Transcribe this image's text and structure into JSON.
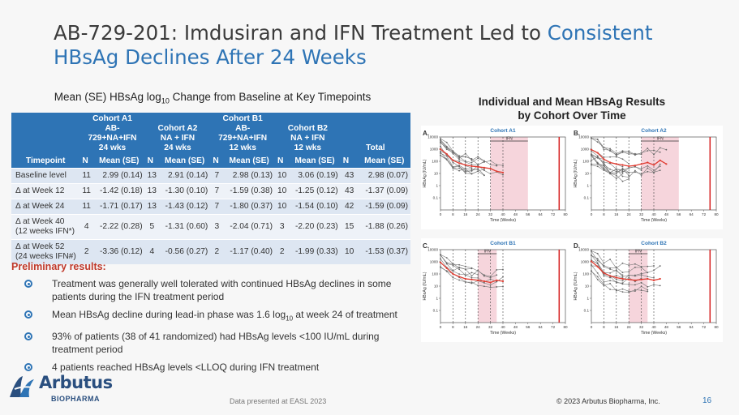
{
  "title": {
    "part1": "AB-729-201: Imdusiran and IFN Treatment Led to ",
    "accent": "Consistent",
    "line2": "HBsAg Declines After 24 Weeks"
  },
  "table_heading": {
    "prefix": "Mean (SE) HBsAg log",
    "sub": "10",
    "suffix": " Change from Baseline at Key Timepoints"
  },
  "table": {
    "timepoint_header": "Timepoint",
    "cohorts": [
      {
        "line1": "Cohort A1",
        "line2": "AB-729+NA+IFN",
        "line3": "24 wks"
      },
      {
        "line1": "Cohort A2",
        "line2": "NA + IFN",
        "line3": "24 wks"
      },
      {
        "line1": "Cohort B1",
        "line2": "AB-729+NA+IFN",
        "line3": "12 wks"
      },
      {
        "line1": "Cohort B2",
        "line2": "NA + IFN",
        "line3": "12 wks"
      },
      {
        "line1": "",
        "line2": "",
        "line3": "Total"
      }
    ],
    "n_label": "N",
    "mean_label": "Mean (SE)",
    "rows": [
      {
        "tp1": "Baseline level",
        "tp2": "",
        "cells": [
          "11",
          "2.99 (0.14)",
          "13",
          "2.91 (0.14)",
          "7",
          "2.98 (0.13)",
          "10",
          "3.06 (0.19)",
          "43",
          "2.98 (0.07)"
        ]
      },
      {
        "tp1": "Δ at Week 12",
        "tp2": "",
        "cells": [
          "11",
          "-1.42 (0.18)",
          "13",
          "-1.30 (0.10)",
          "7",
          "-1.59 (0.38)",
          "10",
          "-1.25 (0.12)",
          "43",
          "-1.37 (0.09)"
        ]
      },
      {
        "tp1": "Δ at Week 24",
        "tp2": "",
        "cells": [
          "11",
          "-1.71 (0.17)",
          "13",
          "-1.43 (0.12)",
          "7",
          "-1.80 (0.37)",
          "10",
          "-1.54 (0.10)",
          "42",
          "-1.59 (0.09)"
        ]
      },
      {
        "tp1": "Δ at Week 40",
        "tp2": "(12 weeks IFN*)",
        "cells": [
          "4",
          "-2.22 (0.28)",
          "5",
          "-1.31 (0.60)",
          "3",
          "-2.04 (0.71)",
          "3",
          "-2.20 (0.23)",
          "15",
          "-1.88 (0.26)"
        ]
      },
      {
        "tp1": "Δ at Week 52",
        "tp2": "(24 weeks IFN#)",
        "cells": [
          "2",
          "-3.36 (0.12)",
          "4",
          "-0.56 (0.27)",
          "2",
          "-1.17 (0.40)",
          "2",
          "-1.99 (0.33)",
          "10",
          "-1.53 (0.37)"
        ]
      }
    ]
  },
  "prelim": {
    "title": "Preliminary results:",
    "bullets": [
      {
        "text": "Treatment was generally well tolerated with continued HBsAg declines in some patients during the IFN treatment period"
      },
      {
        "prefix": "Mean HBsAg decline during lead-in phase was 1.6 log",
        "sub": "10",
        "suffix": " at week 24 of treatment"
      },
      {
        "text": "93% of patients (38 of 41 randomized) had HBsAg levels <100 IU/mL during treatment period"
      },
      {
        "text": "4 patients reached HBsAg levels <LLOQ during IFN treatment"
      }
    ]
  },
  "right_heading": {
    "line1": "Individual and Mean HBsAg Results",
    "line2": "by Cohort Over Time"
  },
  "panels": [
    {
      "letter": "A.",
      "cohort": "Cohort A1",
      "ifn_label": "IFN",
      "ifn_start": 32,
      "ifn_end": 56,
      "cutoff": 76
    },
    {
      "letter": "B.",
      "cohort": "Cohort A2",
      "ifn_label": "IFN",
      "ifn_start": 32,
      "ifn_end": 56,
      "cutoff": 76
    },
    {
      "letter": "C.",
      "cohort": "Cohort B1",
      "ifn_label": "IFN",
      "ifn_start": 24,
      "ifn_end": 36,
      "cutoff": 76
    },
    {
      "letter": "D.",
      "cohort": "Cohort B2",
      "ifn_label": "IFN",
      "ifn_start": 24,
      "ifn_end": 36,
      "cutoff": 76
    }
  ],
  "chart_data": [
    {
      "type": "line",
      "title": "Cohort A1",
      "xlabel": "Time (Weeks)",
      "ylabel": "HBsAg (IU/mL)",
      "xlim": [
        0,
        80
      ],
      "ylog": true,
      "ylim": [
        0.01,
        10000
      ],
      "x_ticks": [
        "0",
        "8",
        "16",
        "24",
        "32",
        "40",
        "48",
        "56",
        "64",
        "72",
        "80"
      ],
      "y_ticks": [
        "0.1",
        "1",
        "10",
        "100",
        "1000",
        "10000"
      ],
      "mean": {
        "x": [
          0,
          4,
          8,
          12,
          16,
          20,
          24,
          28,
          32,
          36,
          40
        ],
        "y": [
          1000,
          400,
          120,
          70,
          50,
          40,
          35,
          30,
          25,
          15,
          12
        ]
      }
    },
    {
      "type": "line",
      "title": "Cohort A2",
      "xlabel": "Time (Weeks)",
      "ylabel": "HBsAg (IU/mL)",
      "xlim": [
        0,
        80
      ],
      "ylog": true,
      "ylim": [
        0.01,
        10000
      ],
      "x_ticks": [
        "0",
        "8",
        "16",
        "24",
        "32",
        "40",
        "48",
        "56",
        "64",
        "72",
        "80"
      ],
      "y_ticks": [
        "0.1",
        "1",
        "10",
        "100",
        "1000",
        "10000"
      ],
      "mean": {
        "x": [
          0,
          4,
          8,
          12,
          16,
          20,
          24,
          28,
          32,
          36,
          40,
          44,
          48
        ],
        "y": [
          900,
          500,
          150,
          80,
          60,
          50,
          40,
          45,
          60,
          80,
          50,
          120,
          60
        ]
      }
    },
    {
      "type": "line",
      "title": "Cohort B1",
      "xlabel": "Time (Weeks)",
      "ylabel": "HBsAg (IU/mL)",
      "xlim": [
        0,
        80
      ],
      "ylog": true,
      "ylim": [
        0.01,
        10000
      ],
      "x_ticks": [
        "0",
        "8",
        "16",
        "24",
        "32",
        "40",
        "48",
        "56",
        "64",
        "72",
        "80"
      ],
      "y_ticks": [
        "0.1",
        "1",
        "10",
        "100",
        "1000",
        "10000"
      ],
      "mean": {
        "x": [
          0,
          4,
          8,
          12,
          16,
          20,
          24,
          28,
          32,
          36,
          40
        ],
        "y": [
          900,
          300,
          100,
          60,
          40,
          35,
          30,
          25,
          20,
          30,
          25
        ]
      }
    },
    {
      "type": "line",
      "title": "Cohort B2",
      "xlabel": "Time (Weeks)",
      "ylabel": "HBsAg (IU/mL)",
      "xlim": [
        0,
        80
      ],
      "ylog": true,
      "ylim": [
        0.01,
        10000
      ],
      "x_ticks": [
        "0",
        "8",
        "16",
        "24",
        "32",
        "40",
        "48",
        "56",
        "64",
        "72",
        "80"
      ],
      "y_ticks": [
        "0.1",
        "1",
        "10",
        "100",
        "1000",
        "10000"
      ],
      "mean": {
        "x": [
          0,
          4,
          8,
          12,
          16,
          20,
          24,
          28,
          32,
          36,
          40,
          44
        ],
        "y": [
          1100,
          400,
          120,
          70,
          50,
          40,
          35,
          30,
          35,
          40,
          30,
          40
        ]
      }
    }
  ],
  "logo": {
    "name": "Arbutus",
    "sub": "BIOPHARMA"
  },
  "footer": {
    "note": "Data presented at EASL 2023",
    "copyright": "© 2023 Arbutus Biopharma, Inc.",
    "page": "16"
  },
  "colors": {
    "accent": "#2e74b5",
    "mean_line": "#e03c31",
    "ifn_band": "#f6d5dc",
    "red_text": "#c0392b"
  }
}
